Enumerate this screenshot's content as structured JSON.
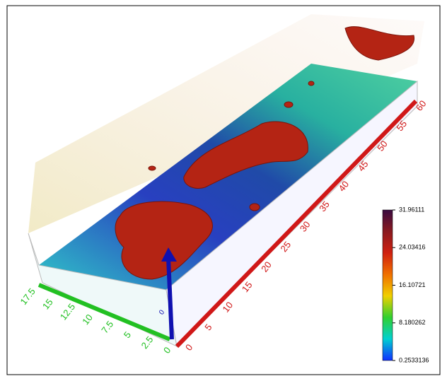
{
  "chart_data": {
    "type": "volume",
    "x_axis": {
      "ticks": [
        0,
        5,
        10,
        15,
        20,
        25,
        30,
        35,
        40,
        45,
        50,
        55,
        60
      ],
      "lim": [
        0,
        60
      ],
      "color": "#d01818"
    },
    "y_axis": {
      "ticks": [
        0,
        2.5,
        5,
        7.5,
        10,
        12.5,
        15,
        17.5
      ],
      "lim": [
        0,
        17.5
      ],
      "color": "#22c022"
    },
    "z_axis": {
      "ticks": [
        0
      ],
      "color": "#1010b0"
    },
    "colorbar": {
      "ticks": [
        0.2533136,
        8.180262,
        16.10721,
        24.03416,
        31.96111
      ],
      "lim": [
        0.2533136,
        31.96111
      ],
      "colors": [
        "#1030ff",
        "#00d0d0",
        "#30d030",
        "#f0d000",
        "#f07000",
        "#d02010",
        "#8a1a20",
        "#3a0a40"
      ]
    }
  }
}
